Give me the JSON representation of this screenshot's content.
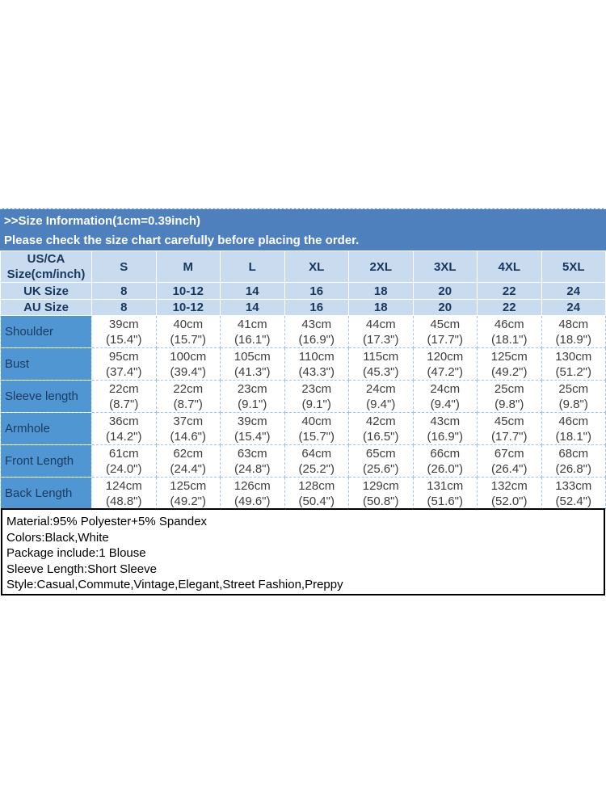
{
  "header": {
    "title": ">>Size Information(1cm=0.39inch)",
    "subtitle": "Please check the size chart carefully before placing the order."
  },
  "size_table": {
    "corner_label": "US/CA\nSize(cm/inch)",
    "sizes": [
      "S",
      "M",
      "L",
      "XL",
      "2XL",
      "3XL",
      "4XL",
      "5XL"
    ],
    "uk_row": {
      "label": "UK Size",
      "values": [
        "8",
        "10-12",
        "14",
        "16",
        "18",
        "20",
        "22",
        "24"
      ]
    },
    "au_row": {
      "label": "AU Size",
      "values": [
        "8",
        "10-12",
        "14",
        "16",
        "18",
        "20",
        "22",
        "24"
      ]
    },
    "measure_rows": [
      {
        "label": "Shoulder",
        "values": [
          "39cm\n(15.4\")",
          "40cm\n(15.7\")",
          "41cm\n(16.1\")",
          "43cm\n(16.9\")",
          "44cm\n(17.3\")",
          "45cm\n(17.7\")",
          "46cm\n(18.1\")",
          "48cm\n(18.9\")"
        ]
      },
      {
        "label": "Bust",
        "values": [
          "95cm\n(37.4\")",
          "100cm\n(39.4\")",
          "105cm\n(41.3\")",
          "110cm\n(43.3\")",
          "115cm\n(45.3\")",
          "120cm\n(47.2\")",
          "125cm\n(49.2\")",
          "130cm\n(51.2\")"
        ]
      },
      {
        "label": "Sleeve length",
        "values": [
          "22cm\n(8.7\")",
          "22cm\n(8.7\")",
          "23cm\n(9.1\")",
          "23cm\n(9.1\")",
          "24cm\n(9.4\")",
          "24cm\n(9.4\")",
          "25cm\n(9.8\")",
          "25cm\n(9.8\")"
        ]
      },
      {
        "label": "Armhole",
        "values": [
          "36cm\n(14.2\")",
          "37cm\n(14.6\")",
          "39cm\n(15.4\")",
          "40cm\n(15.7\")",
          "42cm\n(16.5\")",
          "43cm\n(16.9\")",
          "45cm\n(17.7\")",
          "46cm\n(18.1\")"
        ]
      },
      {
        "label": "Front Length",
        "values": [
          "61cm\n(24.0\")",
          "62cm\n(24.4\")",
          "63cm\n(24.8\")",
          "64cm\n(25.2\")",
          "65cm\n(25.6\")",
          "66cm\n(26.0\")",
          "67cm\n(26.4\")",
          "68cm\n(26.8\")"
        ]
      },
      {
        "label": "Back Length",
        "values": [
          "124cm\n(48.8\")",
          "125cm\n(49.2\")",
          "126cm\n(49.6\")",
          "128cm\n(50.4\")",
          "129cm\n(50.8\")",
          "131cm\n(51.6\")",
          "132cm\n(52.0\")",
          "133cm\n(52.4\")"
        ]
      }
    ]
  },
  "product_info": {
    "lines": [
      "Material:95% Polyester+5% Spandex",
      "Colors:Black,White",
      "Package include:1 Blouse",
      "Sleeve Length:Short Sleeve",
      "Style:Casual,Commute,Vintage,Elegant,Street Fashion,Preppy"
    ]
  },
  "colors": {
    "banner_blue": "#4E80BE",
    "header_light_blue": "#C9DBEF",
    "label_column_blue": "#4F96D3",
    "header_text_navy": "#17375E",
    "cell_text": "#3D3D3D"
  }
}
